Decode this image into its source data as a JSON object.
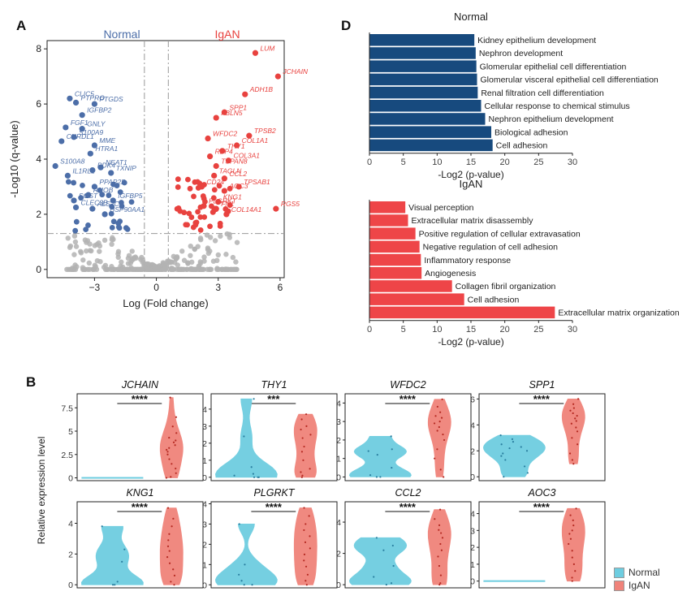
{
  "panel_labels": {
    "A": "A",
    "B": "B",
    "D": "D"
  },
  "colors": {
    "normal": "#4c6ea8",
    "igan": "#e8423f",
    "nonsig": "#b3b3b3",
    "bar_normal": "#174a7e",
    "bar_igan": "#ee4548",
    "violin_normal": "#6ecde0",
    "violin_igan": "#f0837a"
  },
  "chart_data": [
    {
      "id": "volcano",
      "type": "scatter",
      "title_left": "Normal",
      "title_right": "IgAN",
      "xlabel": "Log (Fold change)",
      "ylabel": "-Log10 (q-value)",
      "xlim": [
        -5.3,
        6.2
      ],
      "ylim": [
        -0.3,
        8.3
      ],
      "xticks": [
        -3,
        0,
        3,
        6
      ],
      "yticks": [
        0,
        2,
        4,
        6,
        8
      ],
      "vlines": [
        -0.58,
        0.58
      ],
      "hline": 1.3,
      "normal_genes": [
        {
          "label": "CLIC5",
          "x": -4.2,
          "y": 6.2
        },
        {
          "label": "PTPRO",
          "x": -3.9,
          "y": 6.05
        },
        {
          "label": "PTGDS",
          "x": -3.0,
          "y": 6.0
        },
        {
          "label": "IGFBP2",
          "x": -3.6,
          "y": 5.6
        },
        {
          "label": "FGF1",
          "x": -4.4,
          "y": 5.15
        },
        {
          "label": "GNLY",
          "x": -3.6,
          "y": 5.1
        },
        {
          "label": "S100A9",
          "x": -4.0,
          "y": 4.8
        },
        {
          "label": "CHRDL1",
          "x": -4.6,
          "y": 4.65
        },
        {
          "label": "MME",
          "x": -3.0,
          "y": 4.5
        },
        {
          "label": "HTRA1",
          "x": -3.2,
          "y": 4.2
        },
        {
          "label": "NEAT1",
          "x": -2.7,
          "y": 3.7
        },
        {
          "label": "PDK4",
          "x": -3.1,
          "y": 3.6
        },
        {
          "label": "TXNIP",
          "x": -2.2,
          "y": 3.5
        },
        {
          "label": "S100A8",
          "x": -4.9,
          "y": 3.75
        },
        {
          "label": "IL1RL1",
          "x": -4.3,
          "y": 3.4
        },
        {
          "label": "PPAP2B",
          "x": -3.0,
          "y": 3.0
        },
        {
          "label": "RHOB",
          "x": -3.3,
          "y": 2.7
        },
        {
          "label": "SOST",
          "x": -4.0,
          "y": 2.5
        },
        {
          "label": "CLEC3B",
          "x": -3.9,
          "y": 2.25
        },
        {
          "label": "ALS2CL",
          "x": -3.1,
          "y": 2.2
        },
        {
          "label": "IGFBP5",
          "x": -2.1,
          "y": 2.5
        },
        {
          "label": "HSP90AA1",
          "x": -2.5,
          "y": 2.0
        }
      ],
      "igan_genes": [
        {
          "label": "LUM",
          "x": 4.8,
          "y": 7.85
        },
        {
          "label": "JCHAIN",
          "x": 5.9,
          "y": 7.0
        },
        {
          "label": "ADH1B",
          "x": 4.3,
          "y": 6.35
        },
        {
          "label": "SPP1",
          "x": 3.3,
          "y": 5.7
        },
        {
          "label": "FBLN5",
          "x": 2.9,
          "y": 5.5
        },
        {
          "label": "TPSB2",
          "x": 4.5,
          "y": 4.85
        },
        {
          "label": "WFDC2",
          "x": 2.5,
          "y": 4.75
        },
        {
          "label": "COL1A1",
          "x": 3.9,
          "y": 4.5
        },
        {
          "label": "THY1",
          "x": 3.2,
          "y": 4.3
        },
        {
          "label": "RBP4",
          "x": 2.6,
          "y": 4.1
        },
        {
          "label": "COL3A1",
          "x": 3.5,
          "y": 3.95
        },
        {
          "label": "TSPAN8",
          "x": 2.9,
          "y": 3.75
        },
        {
          "label": "TAGLN",
          "x": 2.8,
          "y": 3.4
        },
        {
          "label": "CCL2",
          "x": 3.3,
          "y": 3.3
        },
        {
          "label": "CD24",
          "x": 2.2,
          "y": 3.0
        },
        {
          "label": "TPSAB1",
          "x": 4.0,
          "y": 3.0
        },
        {
          "label": "AOC3",
          "x": 3.3,
          "y": 2.85
        },
        {
          "label": "KNG1",
          "x": 3.0,
          "y": 2.45
        },
        {
          "label": "PLGRKT",
          "x": 2.3,
          "y": 2.3
        },
        {
          "label": "FN1",
          "x": 2.9,
          "y": 2.2
        },
        {
          "label": "COL14A1",
          "x": 3.4,
          "y": 2.0
        },
        {
          "label": "RGS5",
          "x": 5.8,
          "y": 2.2
        }
      ]
    },
    {
      "id": "go_normal",
      "type": "bar",
      "title": "Normal",
      "xlabel": "-Log2 (p-value)",
      "xlim": [
        0,
        30
      ],
      "xticks": [
        0,
        5,
        10,
        15,
        20,
        25,
        30
      ],
      "categories": [
        "Kidney epithelium development",
        "Nephron development",
        "Glomerular epithelial cell differentiation",
        "Glomerular visceral epithelial cell differentiation",
        "Renal filtration cell differentiation",
        "Cellular response to chemical stimulus",
        "Nephron epithelium development",
        "Biological adhesion",
        "Cell adhesion"
      ],
      "values": [
        15.5,
        15.7,
        15.8,
        15.9,
        16.0,
        16.5,
        17.1,
        18.0,
        18.2
      ]
    },
    {
      "id": "go_igan",
      "type": "bar",
      "title": "IgAN",
      "xlabel": "-Log2 (p-value)",
      "xlim": [
        0,
        30
      ],
      "xticks": [
        0,
        5,
        10,
        15,
        20,
        25,
        30
      ],
      "categories": [
        "Visual perception",
        "Extracellular matrix disassembly",
        "Positive regulation of cellular extravasation",
        "Negative regulation of cell adhesion",
        "Inflammatory response",
        "Angiogenesis",
        "Collagen fibril organization",
        "Cell adhesion",
        "Extracellular matrix organization"
      ],
      "values": [
        5.3,
        5.7,
        6.8,
        7.4,
        7.6,
        7.7,
        12.2,
        14.0,
        27.4
      ]
    },
    {
      "id": "violins",
      "type": "violin",
      "ylabel": "Relative expression level",
      "significance": "****",
      "legend": [
        "Normal",
        "IgAN"
      ],
      "genes": [
        {
          "gene": "JCHAIN",
          "sig": "****",
          "ylim": [
            -0.3,
            9
          ],
          "yticks": [
            0,
            2.5,
            5,
            7.5
          ],
          "normal_pts": [
            0,
            0,
            0,
            0,
            0
          ],
          "igan_pts": [
            8.6,
            6.5,
            5.5,
            4.8,
            4.3,
            4.0,
            3.8,
            3.5,
            3.2,
            3.0,
            2.8,
            2.5,
            2.0,
            1.5,
            1.0,
            0.5,
            0.1,
            0.0
          ]
        },
        {
          "gene": "THY1",
          "sig": "***",
          "ylim": [
            -0.2,
            4.9
          ],
          "yticks": [
            0,
            1,
            2,
            3,
            4
          ],
          "normal_pts": [
            4.6,
            2.4,
            0.6,
            0.2,
            0.1,
            0.0,
            0.0,
            0.0
          ],
          "igan_pts": [
            3.7,
            3.4,
            3.0,
            2.8,
            2.5,
            2.3,
            1.8,
            1.5,
            1.0,
            0.5,
            0.3,
            0.1,
            0.0
          ]
        },
        {
          "gene": "WFDC2",
          "sig": "****",
          "ylim": [
            -0.2,
            4.5
          ],
          "yticks": [
            0,
            1,
            2,
            3,
            4
          ],
          "normal_pts": [
            2.2,
            1.5,
            1.4,
            1.2,
            0.5,
            0.1,
            0.0,
            0.0
          ],
          "igan_pts": [
            4.2,
            3.8,
            3.5,
            3.3,
            3.2,
            3.0,
            2.9,
            2.7,
            2.5,
            2.3,
            2.0,
            1.5,
            1.0,
            0.4,
            0.0
          ]
        },
        {
          "gene": "SPP1",
          "sig": "****",
          "ylim": [
            -0.3,
            6.4
          ],
          "yticks": [
            0,
            2,
            4,
            6
          ],
          "normal_pts": [
            3.2,
            2.9,
            2.7,
            2.5,
            2.3,
            2.2,
            2.0,
            1.8,
            1.6,
            1.3,
            0.8,
            0.3,
            0.0
          ],
          "igan_pts": [
            6.0,
            5.6,
            5.3,
            5.1,
            4.9,
            4.7,
            4.5,
            4.3,
            4.1,
            3.8,
            3.5,
            3.0,
            2.5,
            1.8,
            1.3,
            1.0
          ]
        },
        {
          "gene": "KNG1",
          "sig": "****",
          "ylim": [
            -0.2,
            5.4
          ],
          "yticks": [
            0,
            2,
            4
          ],
          "normal_pts": [
            3.8,
            2.3,
            1.5,
            0.2,
            0.0,
            0.0
          ],
          "igan_pts": [
            5.0,
            4.3,
            3.8,
            3.3,
            2.9,
            2.5,
            2.2,
            1.8,
            1.4,
            1.0,
            0.6,
            0.2,
            0.0
          ]
        },
        {
          "gene": "PLGRKT",
          "sig": "****",
          "ylim": [
            -0.15,
            4.1
          ],
          "yticks": [
            0,
            1,
            2,
            3,
            4
          ],
          "normal_pts": [
            3.0,
            1.0,
            0.5,
            0.2,
            0.0,
            0.0
          ],
          "igan_pts": [
            3.8,
            3.4,
            3.0,
            2.7,
            2.4,
            2.1,
            1.8,
            1.5,
            1.2,
            0.9,
            0.5,
            0.2,
            0.0
          ]
        },
        {
          "gene": "CCL2",
          "sig": "****",
          "ylim": [
            -0.2,
            5.3
          ],
          "yticks": [
            0,
            2,
            4
          ],
          "normal_pts": [
            3.0,
            2.5,
            2.2,
            1.2,
            0.5,
            0.1,
            0.0
          ],
          "igan_pts": [
            4.8,
            4.2,
            3.8,
            3.5,
            3.3,
            3.0,
            2.6,
            2.2,
            1.8,
            1.2,
            0.6,
            0.1,
            0.0
          ]
        },
        {
          "gene": "AOC3",
          "sig": "****",
          "ylim": [
            -0.4,
            4.7
          ],
          "yticks": [
            0,
            1,
            2,
            3,
            4
          ],
          "normal_pts": [
            0,
            0,
            0,
            0
          ],
          "igan_pts": [
            4.3,
            3.9,
            3.6,
            3.3,
            3.0,
            2.8,
            2.5,
            2.2,
            1.8,
            1.4,
            1.0,
            0.6,
            0.2,
            0.0
          ]
        }
      ]
    }
  ]
}
